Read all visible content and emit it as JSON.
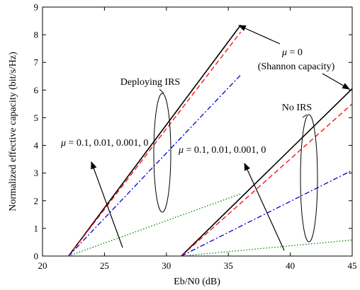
{
  "chart_data": {
    "type": "line",
    "xlabel": "Eb/N0 (dB)",
    "ylabel": "Normalized effective capacity (bit/s/Hz)",
    "xlim": [
      20,
      45
    ],
    "ylim": [
      0,
      9
    ],
    "xticks": [
      20,
      25,
      30,
      35,
      40,
      45
    ],
    "yticks": [
      0,
      1,
      2,
      3,
      4,
      5,
      6,
      7,
      8,
      9
    ],
    "grid": false,
    "series": [
      {
        "group": "irs",
        "mu": "0",
        "color": "#000000",
        "dash": "solid",
        "x": [
          22.1,
          36
        ],
        "y": [
          0,
          8.35
        ]
      },
      {
        "group": "irs",
        "mu": "0.001",
        "color": "#ff0000",
        "dash": "dashed",
        "x": [
          22.1,
          36
        ],
        "y": [
          0,
          8.1
        ]
      },
      {
        "group": "irs",
        "mu": "0.01",
        "color": "#0000cc",
        "dash": "dashdot",
        "x": [
          22.1,
          36
        ],
        "y": [
          0,
          6.55
        ]
      },
      {
        "group": "irs",
        "mu": "0.1",
        "color": "#008000",
        "dash": "dotted",
        "x": [
          22.1,
          36
        ],
        "y": [
          0,
          2.25
        ]
      },
      {
        "group": "no-irs",
        "mu": "0",
        "color": "#000000",
        "dash": "solid",
        "x": [
          31.2,
          45
        ],
        "y": [
          0,
          6.05
        ]
      },
      {
        "group": "no-irs",
        "mu": "0.001",
        "color": "#ff0000",
        "dash": "dashed",
        "x": [
          31.2,
          45
        ],
        "y": [
          0,
          5.5
        ]
      },
      {
        "group": "no-irs",
        "mu": "0.01",
        "color": "#0000cc",
        "dash": "dashdot",
        "x": [
          31.2,
          45
        ],
        "y": [
          0,
          3.1
        ]
      },
      {
        "group": "no-irs",
        "mu": "0.1",
        "color": "#008000",
        "dash": "dotted",
        "x": [
          31.2,
          45
        ],
        "y": [
          0,
          0.58
        ]
      }
    ],
    "annotations": {
      "mu_zero": "= 0",
      "shannon": "(Shannon capacity)",
      "deploying_irs": "Deploying IRS",
      "no_irs": "No IRS",
      "mu_list_left": "= 0.1, 0.01, 0.001, 0",
      "mu_list_right": "= 0.1, 0.01, 0.001, 0",
      "mu_symbol": "μ"
    }
  }
}
